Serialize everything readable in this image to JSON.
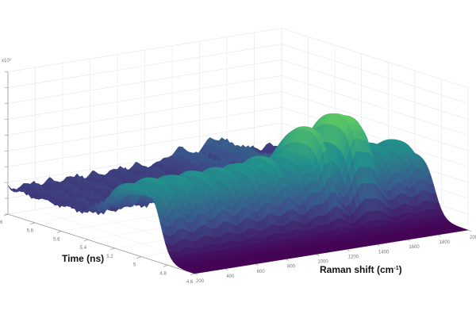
{
  "chart_data": {
    "type": "surface",
    "title": "",
    "xlabel": "Raman shift (cm",
    "xlabel_sup": "-1",
    "xlabel_end": ")",
    "ylabel": "Time (ns)",
    "zlabel": "",
    "z_exponent_label": "x10³",
    "x_range": [
      200,
      2000
    ],
    "y_range": [
      4.6,
      6.0
    ],
    "x_ticks": [
      "200",
      "400",
      "600",
      "800",
      "1000",
      "1200",
      "1400",
      "1600",
      "1800",
      "2000"
    ],
    "y_ticks": [
      "4.6",
      "4.8",
      "5",
      "5.2",
      "5.4",
      "5.6",
      "5.8",
      "6"
    ],
    "z_ticks_count": 9,
    "colormap": [
      "#440154",
      "#3b528b",
      "#21918c",
      "#5ec962",
      "#fde725"
    ],
    "grid": true,
    "spectrum_peaks": [
      {
        "raman": 1300,
        "relative_intensity": 0.8
      },
      {
        "raman": 1550,
        "relative_intensity": 1.0
      },
      {
        "raman": 1000,
        "relative_intensity": 0.6
      }
    ],
    "signal_rise_time_ns": 4.85
  }
}
